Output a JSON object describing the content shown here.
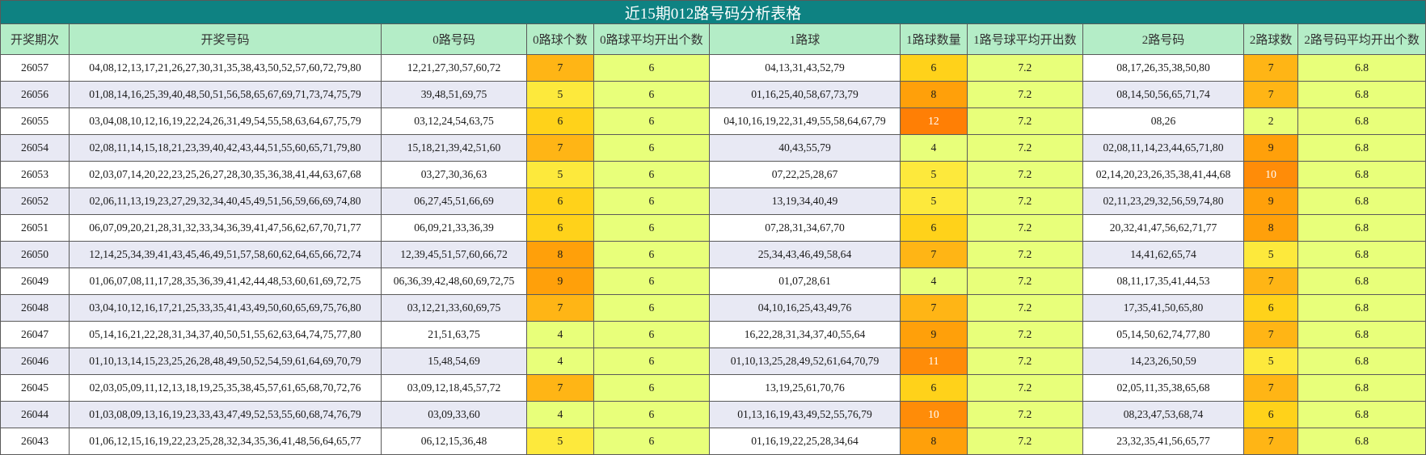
{
  "title": "近15期012路号码分析表格",
  "headers": [
    "开奖期次",
    "开奖号码",
    "0路号码",
    "0路球个数",
    "0路球平均开出个数",
    "1路球",
    "1路球数量",
    "1路号球平均开出数",
    "2路号码",
    "2路球数",
    "2路号码平均开出个数"
  ],
  "rows": [
    {
      "issue": "26057",
      "numbers": "04,08,12,13,17,21,26,27,30,31,35,38,43,50,52,57,60,72,79,80",
      "r0": "12,21,27,30,57,60,72",
      "r0_count": "7",
      "r0_avg": "6",
      "r1": "04,13,31,43,52,79",
      "r1_count": "6",
      "r1_avg": "7.2",
      "r2": "08,17,26,35,38,50,80",
      "r2_count": "7",
      "r2_avg": "6.8"
    },
    {
      "issue": "26056",
      "numbers": "01,08,14,16,25,39,40,48,50,51,56,58,65,67,69,71,73,74,75,79",
      "r0": "39,48,51,69,75",
      "r0_count": "5",
      "r0_avg": "6",
      "r1": "01,16,25,40,58,67,73,79",
      "r1_count": "8",
      "r1_avg": "7.2",
      "r2": "08,14,50,56,65,71,74",
      "r2_count": "7",
      "r2_avg": "6.8"
    },
    {
      "issue": "26055",
      "numbers": "03,04,08,10,12,16,19,22,24,26,31,49,54,55,58,63,64,67,75,79",
      "r0": "03,12,24,54,63,75",
      "r0_count": "6",
      "r0_avg": "6",
      "r1": "04,10,16,19,22,31,49,55,58,64,67,79",
      "r1_count": "12",
      "r1_avg": "7.2",
      "r2": "08,26",
      "r2_count": "2",
      "r2_avg": "6.8"
    },
    {
      "issue": "26054",
      "numbers": "02,08,11,14,15,18,21,23,39,40,42,43,44,51,55,60,65,71,79,80",
      "r0": "15,18,21,39,42,51,60",
      "r0_count": "7",
      "r0_avg": "6",
      "r1": "40,43,55,79",
      "r1_count": "4",
      "r1_avg": "7.2",
      "r2": "02,08,11,14,23,44,65,71,80",
      "r2_count": "9",
      "r2_avg": "6.8"
    },
    {
      "issue": "26053",
      "numbers": "02,03,07,14,20,22,23,25,26,27,28,30,35,36,38,41,44,63,67,68",
      "r0": "03,27,30,36,63",
      "r0_count": "5",
      "r0_avg": "6",
      "r1": "07,22,25,28,67",
      "r1_count": "5",
      "r1_avg": "7.2",
      "r2": "02,14,20,23,26,35,38,41,44,68",
      "r2_count": "10",
      "r2_avg": "6.8"
    },
    {
      "issue": "26052",
      "numbers": "02,06,11,13,19,23,27,29,32,34,40,45,49,51,56,59,66,69,74,80",
      "r0": "06,27,45,51,66,69",
      "r0_count": "6",
      "r0_avg": "6",
      "r1": "13,19,34,40,49",
      "r1_count": "5",
      "r1_avg": "7.2",
      "r2": "02,11,23,29,32,56,59,74,80",
      "r2_count": "9",
      "r2_avg": "6.8"
    },
    {
      "issue": "26051",
      "numbers": "06,07,09,20,21,28,31,32,33,34,36,39,41,47,56,62,67,70,71,77",
      "r0": "06,09,21,33,36,39",
      "r0_count": "6",
      "r0_avg": "6",
      "r1": "07,28,31,34,67,70",
      "r1_count": "6",
      "r1_avg": "7.2",
      "r2": "20,32,41,47,56,62,71,77",
      "r2_count": "8",
      "r2_avg": "6.8"
    },
    {
      "issue": "26050",
      "numbers": "12,14,25,34,39,41,43,45,46,49,51,57,58,60,62,64,65,66,72,74",
      "r0": "12,39,45,51,57,60,66,72",
      "r0_count": "8",
      "r0_avg": "6",
      "r1": "25,34,43,46,49,58,64",
      "r1_count": "7",
      "r1_avg": "7.2",
      "r2": "14,41,62,65,74",
      "r2_count": "5",
      "r2_avg": "6.8"
    },
    {
      "issue": "26049",
      "numbers": "01,06,07,08,11,17,28,35,36,39,41,42,44,48,53,60,61,69,72,75",
      "r0": "06,36,39,42,48,60,69,72,75",
      "r0_count": "9",
      "r0_avg": "6",
      "r1": "01,07,28,61",
      "r1_count": "4",
      "r1_avg": "7.2",
      "r2": "08,11,17,35,41,44,53",
      "r2_count": "7",
      "r2_avg": "6.8"
    },
    {
      "issue": "26048",
      "numbers": "03,04,10,12,16,17,21,25,33,35,41,43,49,50,60,65,69,75,76,80",
      "r0": "03,12,21,33,60,69,75",
      "r0_count": "7",
      "r0_avg": "6",
      "r1": "04,10,16,25,43,49,76",
      "r1_count": "7",
      "r1_avg": "7.2",
      "r2": "17,35,41,50,65,80",
      "r2_count": "6",
      "r2_avg": "6.8"
    },
    {
      "issue": "26047",
      "numbers": "05,14,16,21,22,28,31,34,37,40,50,51,55,62,63,64,74,75,77,80",
      "r0": "21,51,63,75",
      "r0_count": "4",
      "r0_avg": "6",
      "r1": "16,22,28,31,34,37,40,55,64",
      "r1_count": "9",
      "r1_avg": "7.2",
      "r2": "05,14,50,62,74,77,80",
      "r2_count": "7",
      "r2_avg": "6.8"
    },
    {
      "issue": "26046",
      "numbers": "01,10,13,14,15,23,25,26,28,48,49,50,52,54,59,61,64,69,70,79",
      "r0": "15,48,54,69",
      "r0_count": "4",
      "r0_avg": "6",
      "r1": "01,10,13,25,28,49,52,61,64,70,79",
      "r1_count": "11",
      "r1_avg": "7.2",
      "r2": "14,23,26,50,59",
      "r2_count": "5",
      "r2_avg": "6.8"
    },
    {
      "issue": "26045",
      "numbers": "02,03,05,09,11,12,13,18,19,25,35,38,45,57,61,65,68,70,72,76",
      "r0": "03,09,12,18,45,57,72",
      "r0_count": "7",
      "r0_avg": "6",
      "r1": "13,19,25,61,70,76",
      "r1_count": "6",
      "r1_avg": "7.2",
      "r2": "02,05,11,35,38,65,68",
      "r2_count": "7",
      "r2_avg": "6.8"
    },
    {
      "issue": "26044",
      "numbers": "01,03,08,09,13,16,19,23,33,43,47,49,52,53,55,60,68,74,76,79",
      "r0": "03,09,33,60",
      "r0_count": "4",
      "r0_avg": "6",
      "r1": "01,13,16,19,43,49,52,55,76,79",
      "r1_count": "10",
      "r1_avg": "7.2",
      "r2": "08,23,47,53,68,74",
      "r2_count": "6",
      "r2_avg": "6.8"
    },
    {
      "issue": "26043",
      "numbers": "01,06,12,15,16,19,22,23,25,28,32,34,35,36,41,48,56,64,65,77",
      "r0": "06,12,15,36,48",
      "r0_count": "5",
      "r0_avg": "6",
      "r1": "01,16,19,22,25,28,34,64",
      "r1_count": "8",
      "r1_avg": "7.2",
      "r2": "23,32,35,41,56,65,77",
      "r2_count": "7",
      "r2_avg": "6.8"
    }
  ],
  "colors": {
    "title_bg": "#0e8282",
    "header_bg": "#b4edc7",
    "avg_cell_bg": "#e8ff7a",
    "alt_row_bg": "#e8e9f4",
    "scale": [
      "#e8ff7a",
      "#f2f05a",
      "#fde93c",
      "#ffd21a",
      "#ffb515",
      "#ffa00a",
      "#ff8c08",
      "#ff7f05"
    ]
  }
}
